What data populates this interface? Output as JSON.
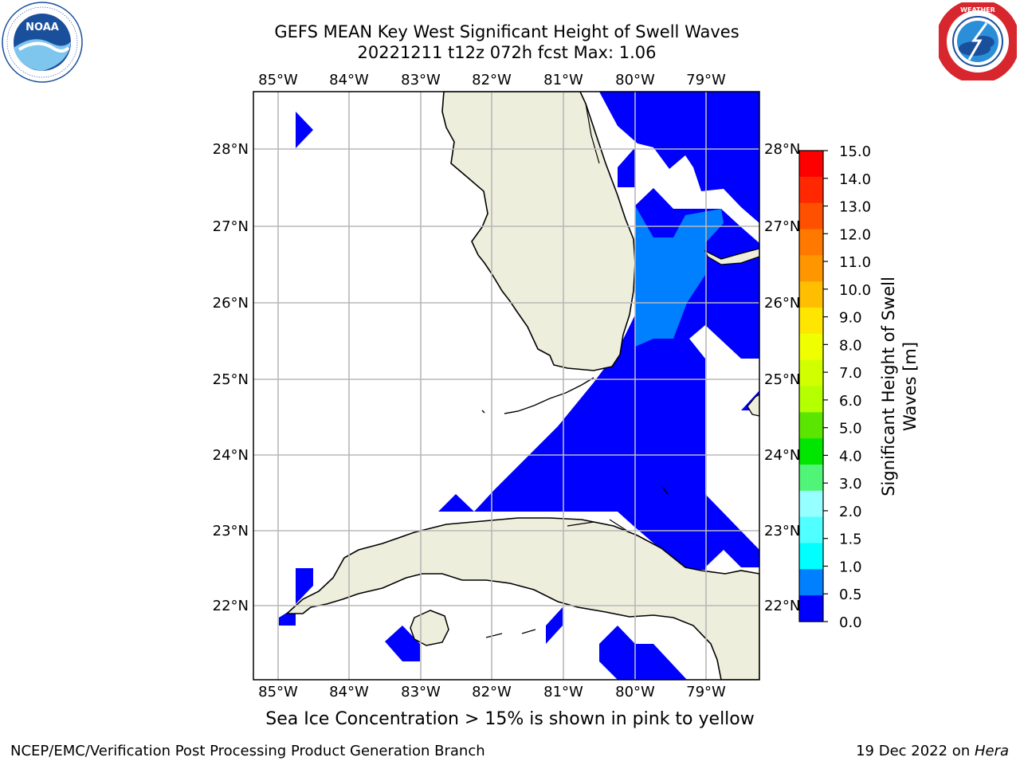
{
  "header": {
    "title_line1": "GEFS MEAN Key West Significant Height of Swell Waves",
    "title_line2": "20221211 t12z 072h fcst   Max: 1.06"
  },
  "logos": {
    "left": {
      "icon": "noaa-logo-icon",
      "text": "NOAA",
      "ring_text": "NATIONAL OCEANIC AND ATMOSPHERIC ADMINISTRATION · U.S. DEPARTMENT OF COMMERCE"
    },
    "right": {
      "icon": "nws-logo-icon",
      "ring_text": "NATIONAL WEATHER SERVICE"
    }
  },
  "map": {
    "lon_labels": [
      "85°W",
      "84°W",
      "83°W",
      "82°W",
      "81°W",
      "80°W",
      "79°W"
    ],
    "lat_labels": [
      "28°N",
      "27°N",
      "26°N",
      "25°N",
      "24°N",
      "23°N",
      "22°N"
    ],
    "land_color": "#eeeedd",
    "ocean_color": "#ffffff",
    "grid_color": "#b8b8b8"
  },
  "colorbar": {
    "label": "Significant Height of Swell Waves [m]",
    "ticks": [
      "15.0",
      "14.0",
      "13.0",
      "12.0",
      "11.0",
      "10.0",
      "9.0",
      "8.0",
      "7.0",
      "6.0",
      "5.0",
      "4.0",
      "3.0",
      "2.0",
      "1.5",
      "1.0",
      "0.5",
      "0.0"
    ],
    "colors_top_to_bottom": [
      "#ff0000",
      "#ff2800",
      "#ff5000",
      "#ff7800",
      "#ff9600",
      "#ffbe00",
      "#ffe600",
      "#f0ff00",
      "#d2ff00",
      "#b4ff00",
      "#5ae600",
      "#00e600",
      "#50f578",
      "#96ffff",
      "#50ffff",
      "#00ffff",
      "#0080ff",
      "#0000ff"
    ]
  },
  "subtitle": "Sea Ice Concentration > 15% is shown in pink to yellow",
  "footer": {
    "left": "NCEP/EMC/Verification Post Processing Product Generation Branch",
    "date": "19 Dec 2022 on ",
    "host": "Hera"
  }
}
